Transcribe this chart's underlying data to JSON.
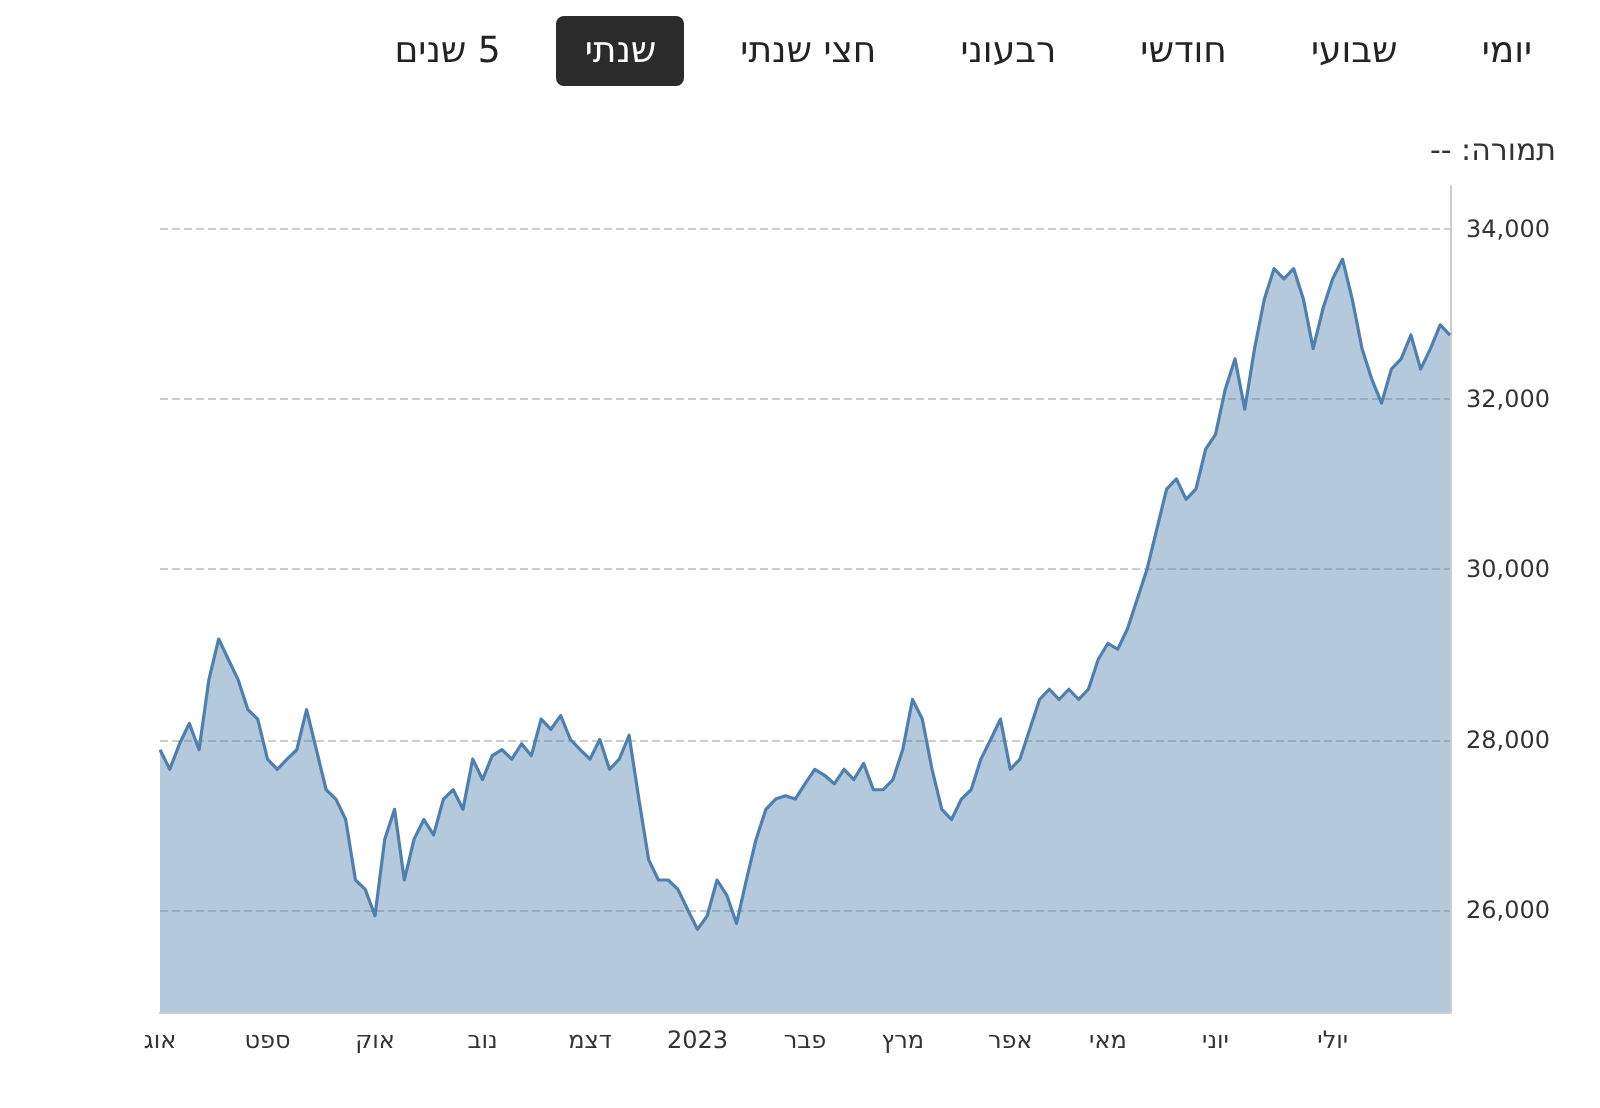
{
  "chart_data": {
    "type": "area",
    "annotations": [
      "יומי",
      "שבועי",
      "חודשי",
      "רבעוני",
      "חצי שנתי",
      "שנתי",
      "5 שנים",
      "תמורה: --"
    ],
    "categories": [
      "אוג",
      null,
      null,
      null,
      null,
      null,
      null,
      null,
      null,
      null,
      null,
      "ספט",
      null,
      null,
      null,
      null,
      null,
      null,
      null,
      null,
      null,
      null,
      "אוק",
      null,
      null,
      null,
      null,
      null,
      null,
      null,
      null,
      null,
      null,
      "נוב",
      null,
      null,
      null,
      null,
      null,
      null,
      null,
      null,
      null,
      null,
      "דצמ",
      null,
      null,
      null,
      null,
      null,
      null,
      null,
      null,
      null,
      null,
      "2023",
      null,
      null,
      null,
      null,
      null,
      null,
      null,
      null,
      null,
      null,
      "פבר",
      null,
      null,
      null,
      null,
      null,
      null,
      null,
      null,
      null,
      "מרץ",
      null,
      null,
      null,
      null,
      null,
      null,
      null,
      null,
      null,
      null,
      "אפר",
      null,
      null,
      null,
      null,
      null,
      null,
      null,
      null,
      null,
      "מאי",
      null,
      null,
      null,
      null,
      null,
      null,
      null,
      null,
      null,
      null,
      "יוני",
      null,
      null,
      null,
      null,
      null,
      null,
      null,
      null,
      null,
      null,
      null,
      "יולי",
      null,
      null,
      null,
      null,
      null,
      null,
      null,
      null,
      null,
      null,
      null,
      null
    ],
    "ylim": [
      24800,
      34500
    ],
    "yticks": [
      {
        "value": 26000,
        "label": "26,000"
      },
      {
        "value": 28000,
        "label": "28,000"
      },
      {
        "value": 30000,
        "label": "30,000"
      },
      {
        "value": 32000,
        "label": "32,000"
      },
      {
        "value": 34000,
        "label": "34,000"
      }
    ],
    "grid": "y",
    "marker": "none",
    "line_style": "solid",
    "series": [
      {
        "color": "#4f7fae",
        "values": [
          27880,
          27650,
          27950,
          28190,
          27880,
          28700,
          29180,
          28940,
          28700,
          28350,
          28240,
          27770,
          27650,
          27770,
          27880,
          28350,
          27880,
          27410,
          27300,
          27060,
          26350,
          26240,
          25930,
          26830,
          27180,
          26350,
          26830,
          27060,
          26880,
          27300,
          27410,
          27180,
          27770,
          27530,
          27810,
          27880,
          27770,
          27950,
          27810,
          28240,
          28120,
          28280,
          28000,
          27880,
          27770,
          28000,
          27650,
          27770,
          28050,
          27300,
          26590,
          26350,
          26350,
          26240,
          26000,
          25770,
          25930,
          26350,
          26170,
          25840,
          26350,
          26830,
          27180,
          27300,
          27340,
          27300,
          27480,
          27650,
          27580,
          27480,
          27650,
          27530,
          27720,
          27410,
          27410,
          27530,
          27880,
          28470,
          28240,
          27650,
          27180,
          27060,
          27300,
          27410,
          27770,
          28000,
          28240,
          27650,
          27770,
          28120,
          28470,
          28590,
          28470,
          28590,
          28470,
          28590,
          28940,
          29130,
          29060,
          29300,
          29650,
          30000,
          30470,
          30940,
          31060,
          30820,
          30940,
          31410,
          31580,
          32110,
          32470,
          31880,
          32590,
          33170,
          33530,
          33410,
          33530,
          33170,
          32590,
          33060,
          33410,
          33640,
          33170,
          32590,
          32230,
          31950,
          32350,
          32470,
          32750,
          32350,
          32590,
          32870,
          32750
        ]
      }
    ]
  }
}
